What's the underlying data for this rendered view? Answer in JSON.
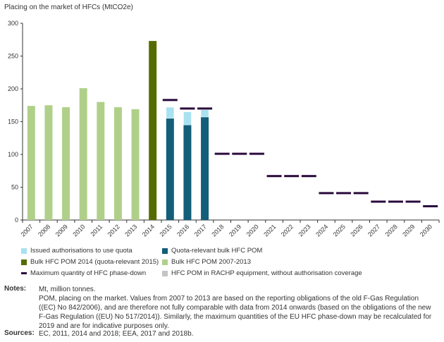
{
  "chart_data": {
    "type": "bar",
    "title": "Placing on the market of HFCs (MtCO2e)",
    "ylim": [
      0,
      300
    ],
    "yticks": [
      0,
      50,
      100,
      150,
      200,
      250,
      300
    ],
    "categories": [
      "2007",
      "2008",
      "2009",
      "2010",
      "2011",
      "2012",
      "2013",
      "2014",
      "2015",
      "2016",
      "2017",
      "2018",
      "2019",
      "2020",
      "2021",
      "2022",
      "2023",
      "2024",
      "2025",
      "2026",
      "2027",
      "2028",
      "2029",
      "2030"
    ],
    "series": [
      {
        "name": "Bulk HFC POM 2007-2013",
        "color": "#b0d08a",
        "values": [
          174,
          175,
          172,
          201,
          180,
          172,
          169,
          null,
          null,
          null,
          null,
          null,
          null,
          null,
          null,
          null,
          null,
          null,
          null,
          null,
          null,
          null,
          null,
          null
        ]
      },
      {
        "name": "Bulk HFC POM 2014 (quota-relevant 2015)",
        "color": "#556b00",
        "values": [
          null,
          null,
          null,
          null,
          null,
          null,
          null,
          273,
          null,
          null,
          null,
          null,
          null,
          null,
          null,
          null,
          null,
          null,
          null,
          null,
          null,
          null,
          null,
          null
        ]
      },
      {
        "name": "Quota-relevant bulk HFC POM",
        "color": "#135e78",
        "values": [
          null,
          null,
          null,
          null,
          null,
          null,
          null,
          null,
          155,
          145,
          157,
          null,
          null,
          null,
          null,
          null,
          null,
          null,
          null,
          null,
          null,
          null,
          null,
          null
        ]
      },
      {
        "name": "Issued authorisations to use quota",
        "color": "#a8e2f0",
        "values": [
          null,
          null,
          null,
          null,
          null,
          null,
          null,
          null,
          17,
          20,
          11,
          null,
          null,
          null,
          null,
          null,
          null,
          null,
          null,
          null,
          null,
          null,
          null,
          null
        ]
      },
      {
        "name": "Maximum quantity of HFC phase-down",
        "color": "#2a0b3d",
        "values": [
          null,
          null,
          null,
          null,
          null,
          null,
          null,
          null,
          183,
          170,
          170,
          101,
          101,
          101,
          67,
          67,
          67,
          41,
          41,
          41,
          28,
          28,
          28,
          21
        ]
      }
    ],
    "legend": [
      {
        "label": "Issued authorisations to use quota",
        "color": "#a8e2f0",
        "kind": "box"
      },
      {
        "label": "Quota-relevant bulk HFC POM",
        "color": "#135e78",
        "kind": "box"
      },
      {
        "label": "Bulk HFC POM 2014 (quota-relevant 2015)",
        "color": "#556b00",
        "kind": "box"
      },
      {
        "label": "Bulk HFC POM 2007-2013",
        "color": "#b0d08a",
        "kind": "box"
      },
      {
        "label": "Maximum quantity of HFC phase-down",
        "color": "#2a0b3d",
        "kind": "dash"
      },
      {
        "label": "HFC POM in RACHP equipment, without authorisation coverage",
        "color": "#c4c4c4",
        "kind": "box"
      }
    ],
    "legend_position": "bottom"
  },
  "notes": {
    "label": "Notes:",
    "line1": "Mt, million tonnes.",
    "line2": "POM, placing on the market. Values from 2007 to 2013 are based on the reporting obligations of the old F-Gas Regulation ((EC) No 842/2006), and are therefore not fully comparable with data from 2014 onwards (based on the obligations of the new F-Gas Regulation ((EU) No 517/2014)). Similarly, the maximum quantities of the EU HFC phase-down may be recalculated for 2019 and are for indicative purposes only."
  },
  "sources": {
    "label": "Sources:",
    "text": "EC, 2011, 2014 and 2018; EEA, 2017 and 2018b."
  }
}
